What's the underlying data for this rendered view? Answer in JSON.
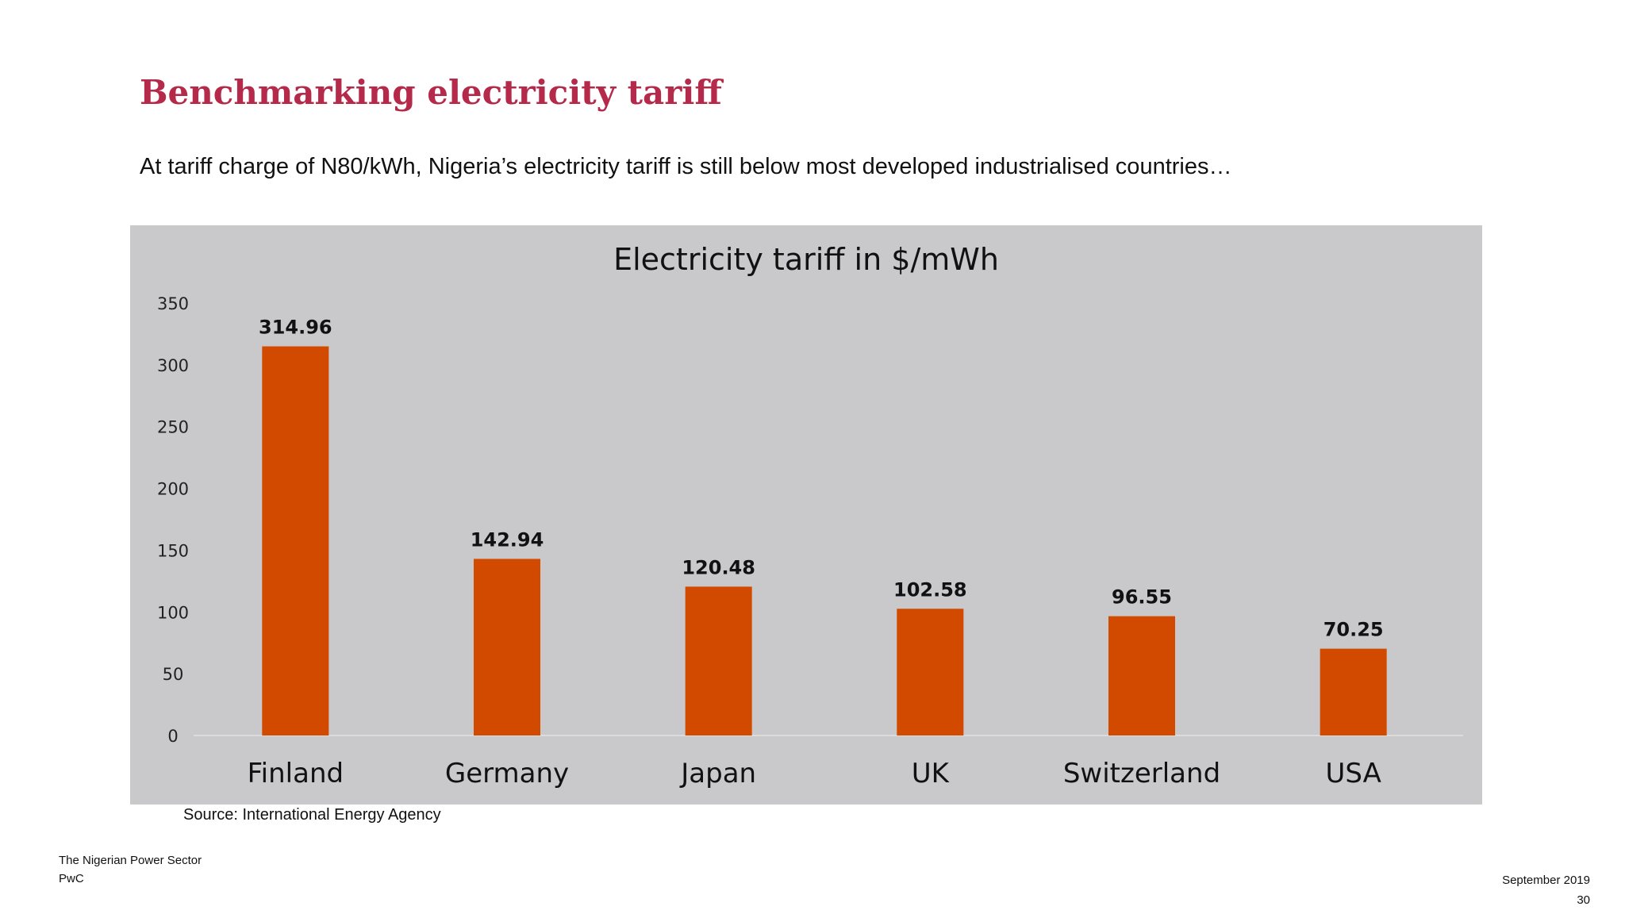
{
  "slide": {
    "title": "Benchmarking electricity tariff",
    "subtitle": "At tariff charge of N80/kWh, Nigeria’s electricity tariff is still below most developed industrialised countries…",
    "source": "Source: International Energy Agency",
    "footer": {
      "line1": "The Nigerian Power Sector",
      "line2": "PwC",
      "date": "September 2019",
      "page": "30"
    }
  },
  "colors": {
    "title": "#b52a4b",
    "bar": "#d14a00",
    "panel_background": "#c9c8ca"
  },
  "chart_data": {
    "type": "bar",
    "title": "Electricity tariff in $/mWh",
    "xlabel": "",
    "ylabel": "",
    "categories": [
      "Finland",
      "Germany",
      "Japan",
      "UK",
      "Switzerland",
      "USA"
    ],
    "values": [
      314.96,
      142.94,
      120.48,
      102.58,
      96.55,
      70.25
    ],
    "value_labels": [
      "314.96",
      "142.94",
      "120.48",
      "102.58",
      "96.55",
      "70.25"
    ],
    "ylim": [
      0,
      350
    ],
    "yticks": [
      0,
      50,
      100,
      150,
      200,
      250,
      300,
      350
    ],
    "grid": false,
    "legend": "none"
  }
}
